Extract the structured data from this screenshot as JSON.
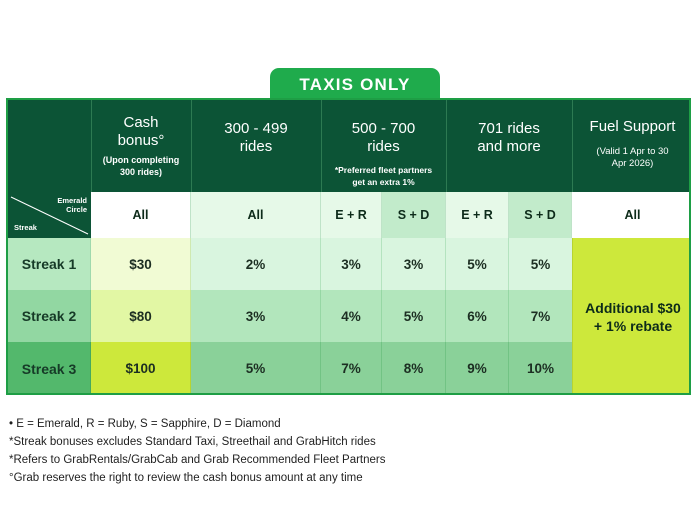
{
  "tab_label": "TAXIS ONLY",
  "header": {
    "cash_title": "Cash bonus°",
    "cash_sub": "(Upon completing 300 rides)",
    "tier1_title": "300 - 499 rides",
    "tier2_title": "500 - 700 rides",
    "tier2_sub": "*Preferred fleet partners get an extra 1%",
    "tier3_title": "701 rides and more",
    "fuel_title": "Fuel Support",
    "fuel_sub": "(Valid 1 Apr to 30 Apr 2026)"
  },
  "corner": {
    "top_label": "Emerald Circle",
    "bottom_label": "Streak"
  },
  "subheader": [
    "All",
    "All",
    "E + R",
    "S + D",
    "E + R",
    "S + D",
    "All"
  ],
  "rows": [
    {
      "label": "Streak 1",
      "cash": "$30",
      "t1": "2%",
      "t2a": "3%",
      "t2b": "3%",
      "t3a": "5%",
      "t3b": "5%"
    },
    {
      "label": "Streak 2",
      "cash": "$80",
      "t1": "3%",
      "t2a": "4%",
      "t2b": "5%",
      "t3a": "6%",
      "t3b": "7%"
    },
    {
      "label": "Streak 3",
      "cash": "$100",
      "t1": "5%",
      "t2a": "7%",
      "t2b": "8%",
      "t3a": "9%",
      "t3b": "10%"
    }
  ],
  "fuel_value": "Additional $30 + 1% rebate",
  "notes": [
    "• E = Emerald, R = Ruby, S = Sapphire, D = Diamond",
    "*Streak bonuses excludes Standard Taxi, Streethail and GrabHitch rides",
    "*Refers to GrabRentals/GrabCab and Grab Recommended Fleet Partners",
    "°Grab reserves the right to review the cash bonus amount at any time"
  ],
  "colors": {
    "header_bg": "#0c5436",
    "tab_bg": "#1fab4c",
    "fuel_bg": "#cde83b"
  }
}
